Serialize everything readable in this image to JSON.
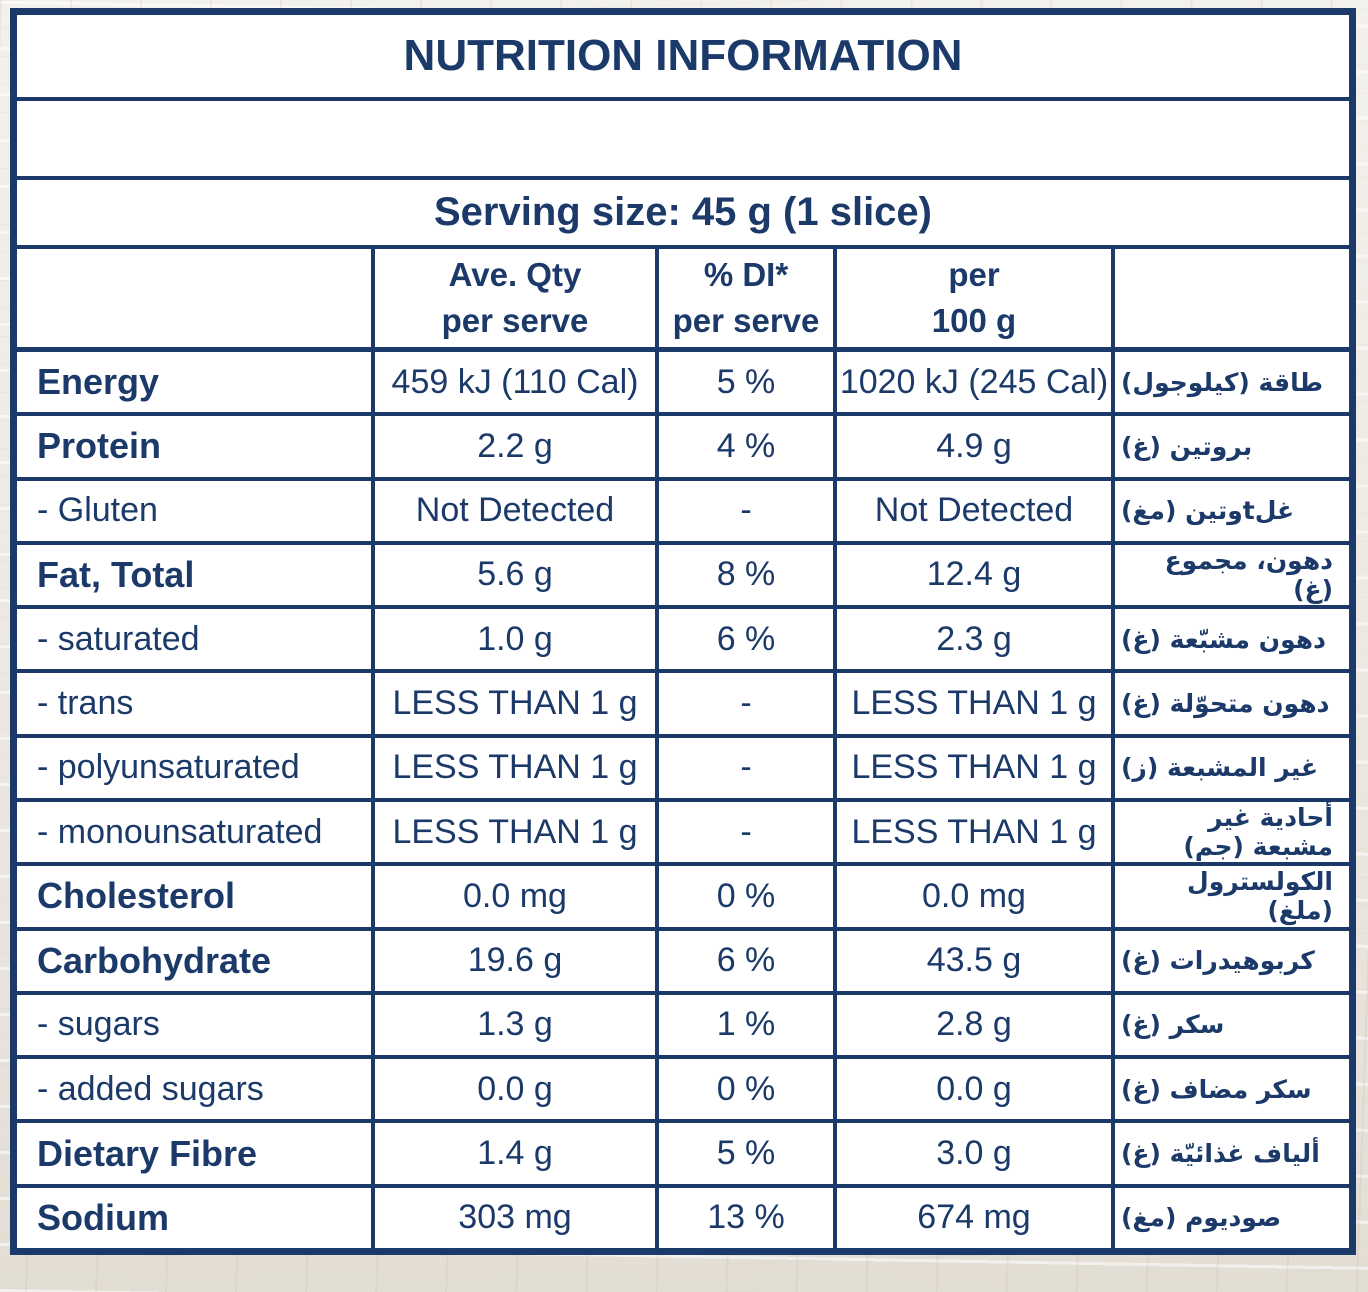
{
  "colors": {
    "navy": "#1c3a69",
    "table_bg": "#ffffff",
    "page_bg": "#e9e5dd"
  },
  "title": "NUTRITION INFORMATION",
  "serving": "Serving size: 45 g (1 slice)",
  "header": {
    "qty_l1": "Ave. Qty",
    "qty_l2": "per serve",
    "di_l1": "% DI*",
    "di_l2": "per serve",
    "per100_l1": "per",
    "per100_l2": "100 g"
  },
  "rows": [
    {
      "label": "Energy",
      "emphasis": true,
      "serve": "459 kJ (110 Cal)",
      "di": "5 %",
      "per100": "1020 kJ (245 Cal)",
      "ar": "طاقة (كيلوجول)"
    },
    {
      "label": "Protein",
      "emphasis": true,
      "serve": "2.2 g",
      "di": "4 %",
      "per100": "4.9 g",
      "ar": "بروتين (غ)"
    },
    {
      "label": "- Gluten",
      "emphasis": false,
      "serve": "Not Detected",
      "di": "-",
      "per100": "Not Detected",
      "ar": "غلtوتين (مغ)"
    },
    {
      "label": "Fat, Total",
      "emphasis": true,
      "serve": "5.6 g",
      "di": "8 %",
      "per100": "12.4 g",
      "ar": "دهون، مجموع (غ)"
    },
    {
      "label": "- saturated",
      "emphasis": false,
      "serve": "1.0 g",
      "di": "6 %",
      "per100": "2.3 g",
      "ar": "دهون مشبّعة (غ)"
    },
    {
      "label": "- trans",
      "emphasis": false,
      "serve": "LESS THAN 1 g",
      "di": "-",
      "per100": "LESS THAN 1 g",
      "ar": "دهون متحوّلة (غ)"
    },
    {
      "label": "- polyunsaturated",
      "emphasis": false,
      "serve": "LESS THAN 1 g",
      "di": "-",
      "per100": "LESS THAN 1 g",
      "ar": "غير المشبعة (ز)"
    },
    {
      "label": "- monounsaturated",
      "emphasis": false,
      "serve": "LESS THAN 1 g",
      "di": "-",
      "per100": "LESS THAN 1 g",
      "ar": "أحادية غير مشبعة (جم)"
    },
    {
      "label": "Cholesterol",
      "emphasis": true,
      "serve": "0.0 mg",
      "di": "0 %",
      "per100": "0.0 mg",
      "ar": "الكولسترول (ملغ)"
    },
    {
      "label": "Carbohydrate",
      "emphasis": true,
      "serve": "19.6 g",
      "di": "6 %",
      "per100": "43.5 g",
      "ar": "كربوهيدرات (غ)"
    },
    {
      "label": "- sugars",
      "emphasis": false,
      "serve": "1.3 g",
      "di": "1 %",
      "per100": "2.8 g",
      "ar": "سكر (غ)"
    },
    {
      "label": "- added sugars",
      "emphasis": false,
      "serve": "0.0 g",
      "di": "0 %",
      "per100": "0.0 g",
      "ar": "سكر مضاف (غ)"
    },
    {
      "label": "Dietary Fibre",
      "emphasis": true,
      "serve": "1.4 g",
      "di": "5 %",
      "per100": "3.0 g",
      "ar": "ألياف غذائيّة (غ)"
    },
    {
      "label": "Sodium",
      "emphasis": true,
      "serve": "303 mg",
      "di": "13 %",
      "per100": "674 mg",
      "ar": "صوديوم (مغ)"
    }
  ]
}
